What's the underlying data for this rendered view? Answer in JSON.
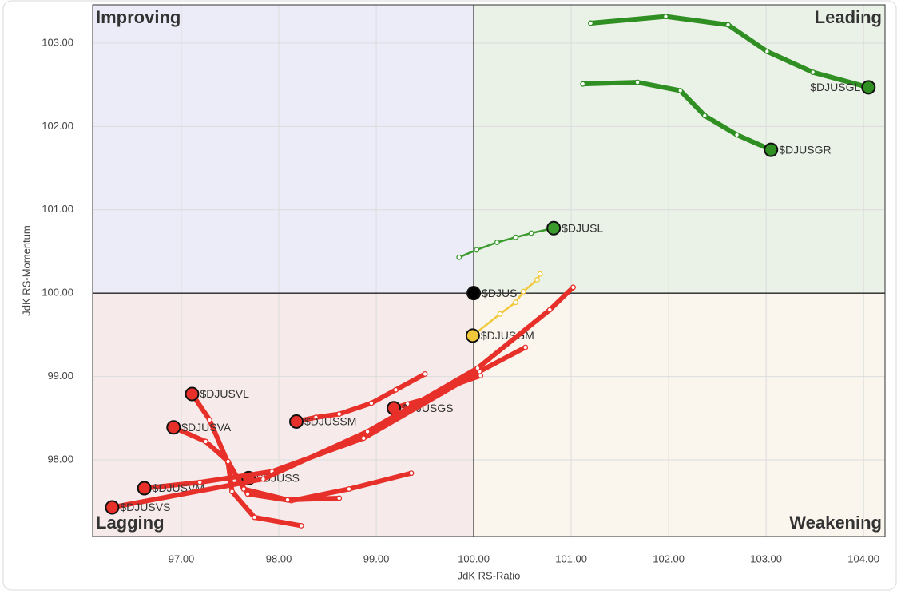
{
  "chart_data": {
    "type": "rrg",
    "x_label": "JdK RS-Ratio",
    "y_label": "JdK RS-Momentum",
    "xlim": [
      96.09,
      104.22
    ],
    "ylim": [
      97.08,
      103.46
    ],
    "center": {
      "x": 100,
      "y": 100
    },
    "xticks": [
      {
        "value": 97,
        "label": "97.00"
      },
      {
        "value": 98,
        "label": "98.00"
      },
      {
        "value": 99,
        "label": "99.00"
      },
      {
        "value": 100,
        "label": "100.00"
      },
      {
        "value": 101,
        "label": "101.00"
      },
      {
        "value": 102,
        "label": "102.00"
      },
      {
        "value": 103,
        "label": "103.00"
      },
      {
        "value": 104,
        "label": "104.00"
      }
    ],
    "yticks": [
      {
        "value": 98,
        "label": "98.00"
      },
      {
        "value": 99,
        "label": "99.00"
      },
      {
        "value": 100,
        "label": "100.00"
      },
      {
        "value": 101,
        "label": "101.00"
      },
      {
        "value": 102,
        "label": "102.00"
      },
      {
        "value": 103,
        "label": "103.00"
      }
    ],
    "grid": true,
    "quadrants": [
      {
        "name": "Improving",
        "color": "#9a9af0",
        "fill": "#ececf8"
      },
      {
        "name": "Leading",
        "color": "#6cbf62",
        "fill": "#eaf1e7"
      },
      {
        "name": "Lagging",
        "color": "#f08a8a",
        "fill": "#f6eaea"
      },
      {
        "name": "Weakening",
        "color": "#f2c53c",
        "fill": "#faf6ee"
      }
    ],
    "series": [
      {
        "name": "$DJUSGL",
        "color": "#2f8f22",
        "x": [
          101.2,
          101.97,
          102.61,
          103.01,
          103.48,
          104.05
        ],
        "values": [
          103.24,
          103.32,
          103.22,
          102.9,
          102.65,
          102.47
        ]
      },
      {
        "name": "$DJUSGR",
        "color": "#2f8f22",
        "x": [
          101.12,
          101.68,
          102.12,
          102.37,
          102.7,
          103.05
        ],
        "values": [
          102.51,
          102.53,
          102.43,
          102.13,
          101.9,
          101.72
        ]
      },
      {
        "name": "$DJUSL",
        "color": "#3a9a2c",
        "x": [
          99.85,
          100.03,
          100.24,
          100.43,
          100.59,
          100.82
        ],
        "values": [
          100.43,
          100.52,
          100.61,
          100.67,
          100.72,
          100.78
        ]
      },
      {
        "name": "$DJUS",
        "color": "#000000",
        "x": [
          100.0
        ],
        "values": [
          100.0
        ]
      },
      {
        "name": "$DJUSGM",
        "color": "#f0c83a",
        "x": [
          100.68,
          100.65,
          100.51,
          100.43,
          100.27,
          99.99
        ],
        "values": [
          100.23,
          100.16,
          100.02,
          99.89,
          99.75,
          99.49
        ]
      },
      {
        "name": "$DJUSGS",
        "color": "#e8302a",
        "x": [
          100.07,
          99.85,
          99.66,
          99.48,
          99.32,
          99.18
        ],
        "values": [
          99.01,
          98.92,
          98.81,
          98.72,
          98.67,
          98.62
        ]
      },
      {
        "name": "$DJUSSM",
        "color": "#e8302a",
        "x": [
          99.5,
          99.2,
          98.95,
          98.62,
          98.38,
          98.18
        ],
        "values": [
          99.03,
          98.84,
          98.68,
          98.55,
          98.51,
          98.46
        ]
      },
      {
        "name": "$DJUSS",
        "color": "#e8302a",
        "x": [
          99.36,
          98.72,
          98.13,
          97.68,
          97.6,
          97.69
        ],
        "values": [
          97.84,
          97.65,
          97.51,
          97.59,
          97.74,
          97.78
        ]
      },
      {
        "name": "$DJUSVL",
        "color": "#e8302a",
        "x": [
          98.23,
          97.75,
          97.52,
          97.48,
          97.29,
          97.11
        ],
        "values": [
          97.21,
          97.31,
          97.62,
          97.96,
          98.48,
          98.79
        ]
      },
      {
        "name": "$DJUSVA",
        "color": "#e8302a",
        "x": [
          98.62,
          98.09,
          97.64,
          97.48,
          97.25,
          96.92
        ],
        "values": [
          97.54,
          97.52,
          97.65,
          97.98,
          98.22,
          98.39
        ]
      },
      {
        "name": "$DJUSVM",
        "color": "#e8302a",
        "x": [
          100.53,
          100.06,
          98.87,
          97.93,
          97.19,
          96.62
        ],
        "values": [
          99.35,
          99.06,
          98.26,
          97.86,
          97.73,
          97.66
        ]
      },
      {
        "name": "$DJUSVS",
        "color": "#e8302a",
        "x": [
          101.02,
          100.78,
          100.04,
          98.91,
          97.84,
          96.29
        ],
        "values": [
          100.07,
          99.8,
          99.1,
          98.34,
          97.77,
          97.43
        ]
      }
    ]
  }
}
